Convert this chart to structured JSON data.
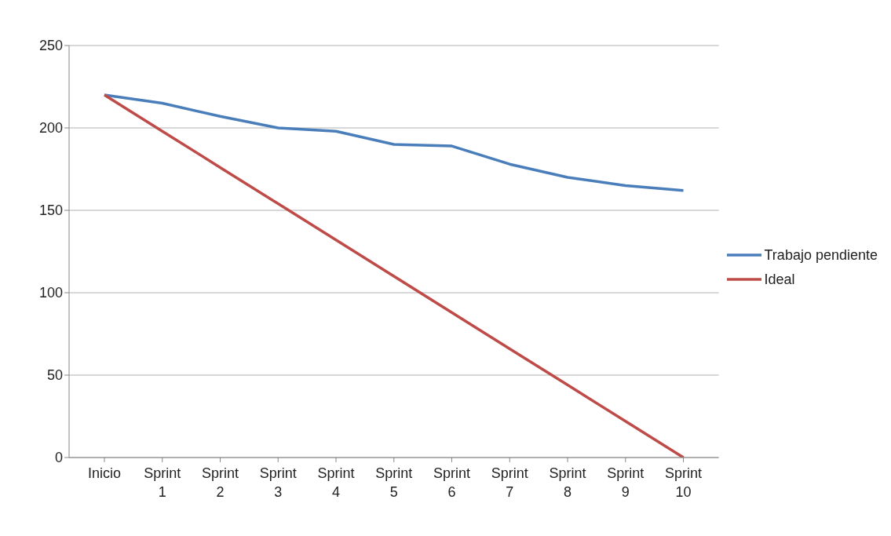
{
  "chart_data": {
    "type": "line",
    "categories": [
      "Inicio",
      "Sprint 1",
      "Sprint 2",
      "Sprint 3",
      "Sprint 4",
      "Sprint 5",
      "Sprint 6",
      "Sprint 7",
      "Sprint 8",
      "Sprint 9",
      "Sprint 10"
    ],
    "series": [
      {
        "name": "Trabajo pendiente",
        "color": "#4a7ebb",
        "values": [
          220,
          215,
          207,
          200,
          198,
          190,
          189,
          178,
          170,
          165,
          162
        ]
      },
      {
        "name": "Ideal",
        "color": "#be4b48",
        "values": [
          220,
          198,
          176,
          154,
          132,
          110,
          88,
          66,
          44,
          22,
          0
        ]
      }
    ],
    "ylim": [
      0,
      250
    ],
    "yticks": [
      0,
      50,
      100,
      150,
      200,
      250
    ],
    "grid": "y",
    "legend": "right",
    "marker": "none",
    "line_style": "solid"
  }
}
